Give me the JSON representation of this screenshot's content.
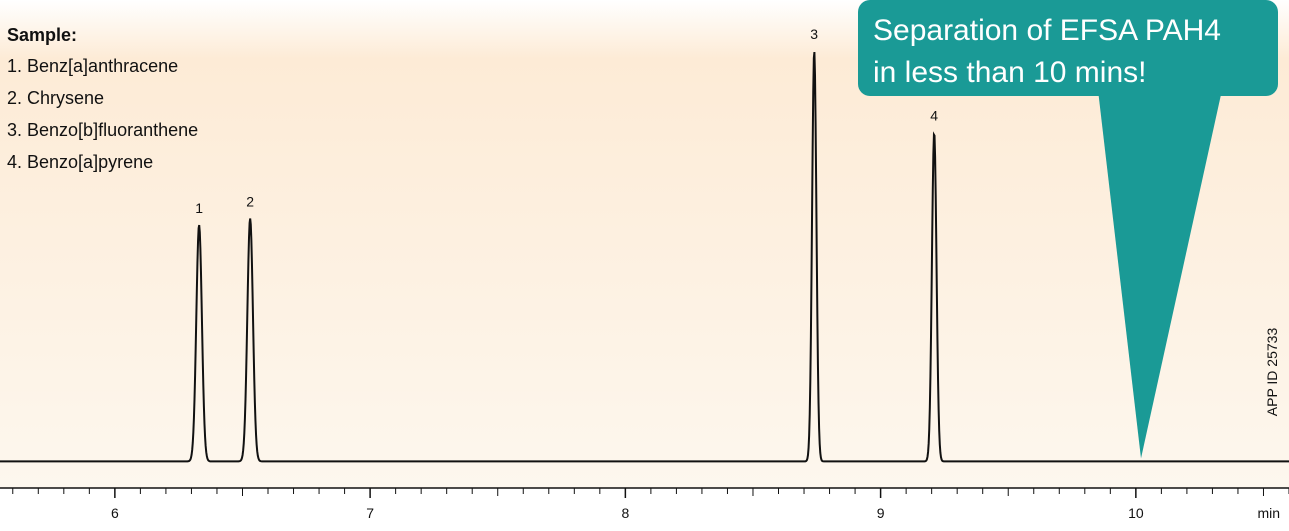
{
  "sample": {
    "title": "Sample:",
    "items": [
      "1. Benz[a]anthracene",
      "2. Chrysene",
      "3. Benzo[b]fluoranthene",
      "4. Benzo[a]pyrene"
    ]
  },
  "callout": {
    "lines": [
      "Separation of EFSA PAH4",
      "in less than 10 mins!"
    ],
    "color": "#1a9a96",
    "points_to_x": 10.02
  },
  "app_id": "APP ID 25733",
  "background_colors": {
    "top": "#ffffff",
    "mid": "#fdebd6",
    "bottom": "#fdf7ee"
  },
  "chart_data": {
    "type": "line",
    "xlabel": "min",
    "xlim": [
      5.55,
      10.6
    ],
    "x_ticks": [
      6,
      7,
      8,
      9,
      10
    ],
    "x_minor_step": 0.1,
    "ylim": [
      0,
      1
    ],
    "baseline": 0.02,
    "grid": false,
    "line_color": "#111111",
    "series": [
      {
        "peaks": [
          {
            "label": "1",
            "x": 6.33,
            "height": 0.55,
            "width": 0.011
          },
          {
            "label": "2",
            "x": 6.53,
            "height": 0.565,
            "width": 0.011
          },
          {
            "label": "3",
            "x": 8.74,
            "height": 0.955,
            "width": 0.0085
          },
          {
            "label": "4",
            "x": 9.21,
            "height": 0.765,
            "width": 0.009
          }
        ]
      }
    ]
  }
}
